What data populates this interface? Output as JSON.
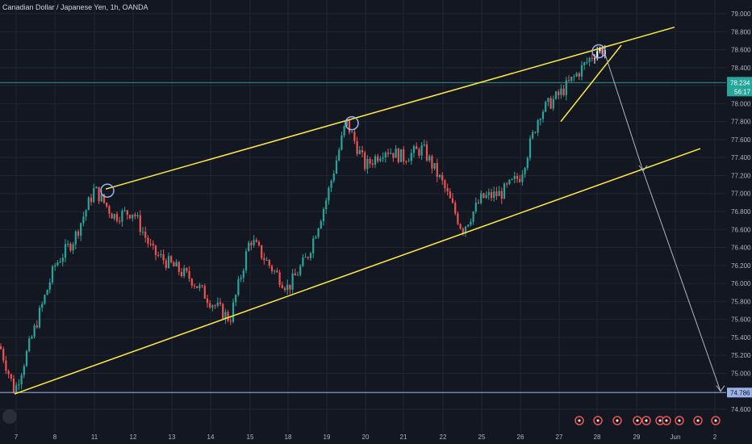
{
  "header": {
    "symbol_title": "Canadian Dollar / Japanese Yen, 1h, OANDA"
  },
  "price_axis": {
    "ticks": [
      "79.000",
      "78.800",
      "78.600",
      "78.400",
      "78.200",
      "78.000",
      "77.800",
      "77.600",
      "77.400",
      "77.200",
      "77.000",
      "76.800",
      "76.600",
      "76.400",
      "76.200",
      "76.000",
      "75.800",
      "75.600",
      "75.400",
      "75.200",
      "75.000",
      "74.800",
      "74.600"
    ],
    "current_price_label": "78.234",
    "countdown_label": "56:17",
    "target_price_label": "74.786"
  },
  "time_axis": {
    "ticks": [
      "7",
      "8",
      "11",
      "12",
      "13",
      "14",
      "15",
      "18",
      "19",
      "20",
      "21",
      "22",
      "25",
      "26",
      "27",
      "28",
      "29",
      "Jun",
      "2"
    ]
  },
  "colors": {
    "background": "#131722",
    "up_candle": "#26a69a",
    "down_candle": "#ef5350",
    "trendline": "#ffeb3b",
    "current_price_line": "#26a69a",
    "target_line": "#9db2e8",
    "projection_arrow": "#b2b5be"
  },
  "chart_data": {
    "type": "candlestick",
    "title": "Canadian Dollar / Japanese Yen, 1h, OANDA",
    "ylim": [
      74.4,
      79.0
    ],
    "x_categories": [
      "7",
      "8",
      "11",
      "12",
      "13",
      "14",
      "15",
      "18",
      "19",
      "20",
      "21",
      "22",
      "25",
      "26",
      "27",
      "28",
      "29",
      "Jun",
      "2"
    ],
    "price_path": [
      {
        "x": "7",
        "y": 75.3
      },
      {
        "x": "7",
        "y": 74.8
      },
      {
        "x": "8",
        "y": 76.2
      },
      {
        "x": "8",
        "y": 76.5
      },
      {
        "x": "11",
        "y": 77.05
      },
      {
        "x": "11",
        "y": 76.75
      },
      {
        "x": "12",
        "y": 76.8
      },
      {
        "x": "12",
        "y": 76.35
      },
      {
        "x": "13",
        "y": 76.2
      },
      {
        "x": "13",
        "y": 76.05
      },
      {
        "x": "14",
        "y": 75.8
      },
      {
        "x": "14",
        "y": 75.6
      },
      {
        "x": "15",
        "y": 76.5
      },
      {
        "x": "15",
        "y": 76.2
      },
      {
        "x": "18",
        "y": 75.95
      },
      {
        "x": "18",
        "y": 76.3
      },
      {
        "x": "19",
        "y": 76.95
      },
      {
        "x": "19",
        "y": 77.8
      },
      {
        "x": "20",
        "y": 77.3
      },
      {
        "x": "20",
        "y": 77.5
      },
      {
        "x": "21",
        "y": 77.4
      },
      {
        "x": "21",
        "y": 77.5
      },
      {
        "x": "22",
        "y": 77.1
      },
      {
        "x": "22",
        "y": 76.6
      },
      {
        "x": "25",
        "y": 76.95
      },
      {
        "x": "25",
        "y": 77.0
      },
      {
        "x": "26",
        "y": 77.2
      },
      {
        "x": "26",
        "y": 77.9
      },
      {
        "x": "27",
        "y": 78.1
      },
      {
        "x": "27",
        "y": 78.35
      },
      {
        "x": "28",
        "y": 78.6
      }
    ],
    "current_price": 78.234,
    "target_price": 74.786,
    "channel_upper": [
      {
        "x": "11",
        "y": 77.05
      },
      {
        "x": "29",
        "y": 78.85
      }
    ],
    "channel_lower": [
      {
        "x": "7",
        "y": 74.77
      },
      {
        "x": "Jun",
        "y": 77.5
      }
    ],
    "wedge_support": [
      {
        "x": "27",
        "y": 77.8
      },
      {
        "x": "29",
        "y": 78.65
      }
    ],
    "highlighted_highs": [
      {
        "x": "11",
        "y": 77.05
      },
      {
        "x": "19",
        "y": 77.8
      },
      {
        "x": "28",
        "y": 78.6
      }
    ],
    "projection_arrow": [
      {
        "x": "28",
        "y": 78.55
      },
      {
        "x": "29",
        "y": 77.25
      },
      {
        "x": "2",
        "y": 74.8
      }
    ]
  }
}
